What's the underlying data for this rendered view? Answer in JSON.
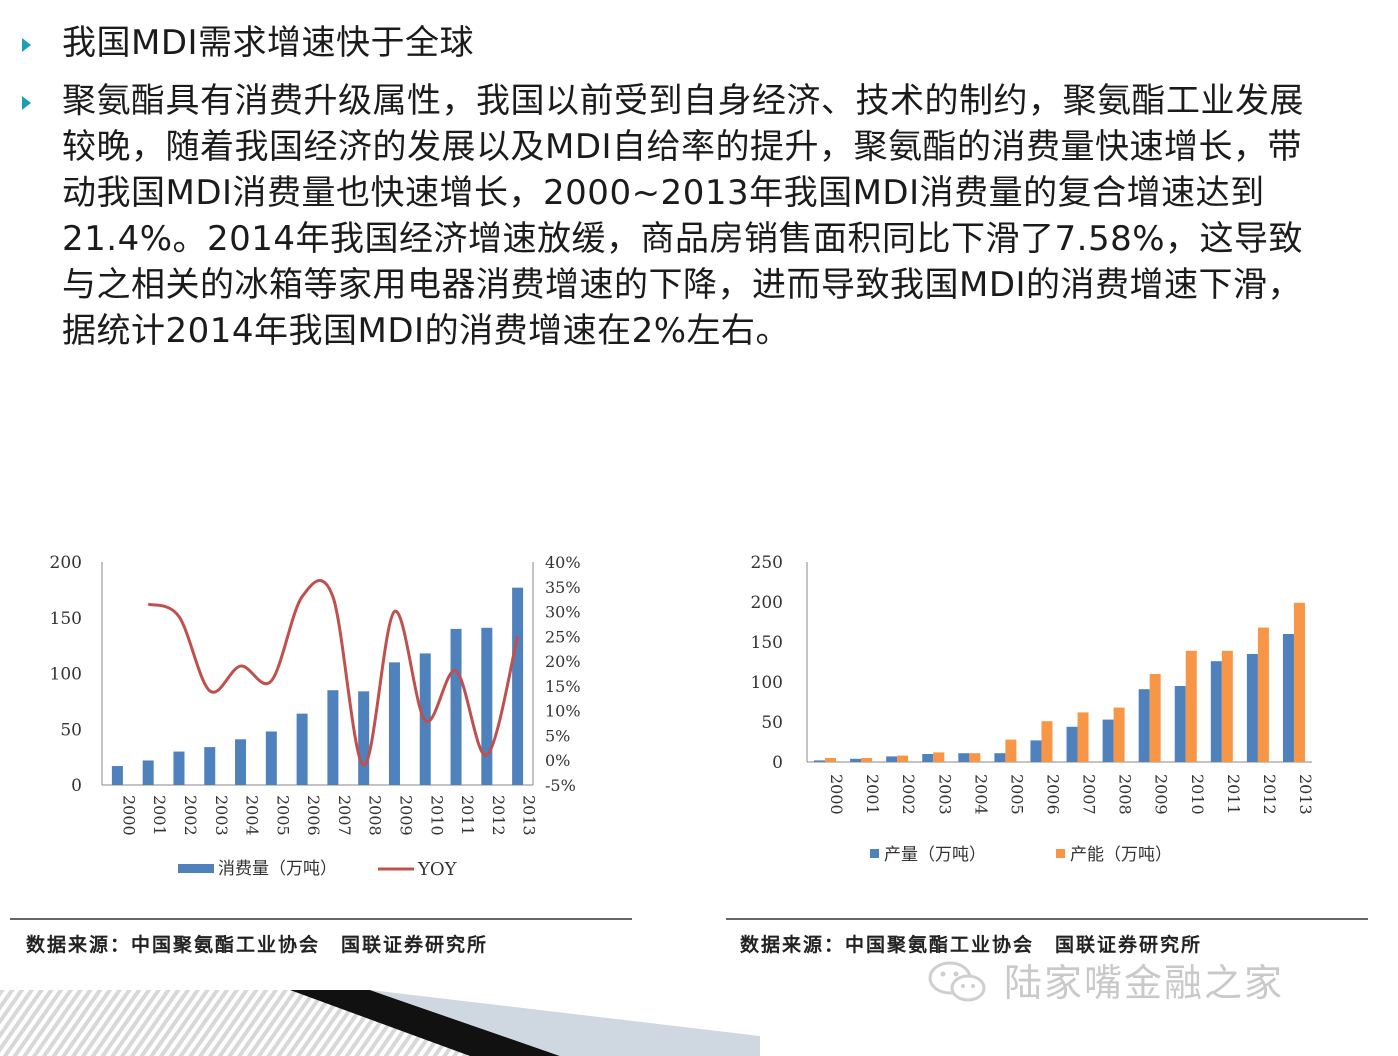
{
  "bullets": [
    {
      "text": "我国MDI需求增速快于全球"
    },
    {
      "text": "聚氨酯具有消费升级属性，我国以前受到自身经济、技术的制约，聚氨酯工业发展较晚，随着我国经济的发展以及MDI自给率的提升，聚氨酯的消费量快速增长，带动我国MDI消费量也快速增长，2000~2013年我国MDI消费量的复合增速达到21.4%。2014年我国经济增速放缓，商品房销售面积同比下滑了7.58%，这导致与之相关的冰箱等家用电器消费增速的下降，进而导致我国MDI的消费增速下滑，据统计2014年我国MDI的消费增速在2%左右。"
    }
  ],
  "sources": {
    "left": "数据来源：中国聚氨酯工业协会　国联证券研究所",
    "right": "数据来源：中国聚氨酯工业协会　国联证券研究所"
  },
  "watermark": "陆家嘴金融之家",
  "colors": {
    "blue": "#4f81bd",
    "red": "#c0504d",
    "orange": "#f79646",
    "bullet": "#1aa0b4"
  },
  "chart_data": [
    {
      "type": "bar",
      "categories": [
        "2000",
        "2001",
        "2002",
        "2003",
        "2004",
        "2005",
        "2006",
        "2007",
        "2008",
        "2009",
        "2010",
        "2011",
        "2012",
        "2013"
      ],
      "series": [
        {
          "name": "消费量（万吨）",
          "type": "bar",
          "axis": "left",
          "color": "#4f81bd",
          "values": [
            17,
            22,
            30,
            34,
            41,
            48,
            64,
            85,
            84,
            110,
            118,
            140,
            141,
            177
          ]
        },
        {
          "name": "YOY",
          "type": "line",
          "axis": "right",
          "color": "#c0504d",
          "values": [
            null,
            31.5,
            29,
            14,
            19,
            16,
            33,
            33,
            -1,
            30,
            8,
            18,
            1,
            25
          ]
        }
      ],
      "ylim": [
        0,
        200
      ],
      "yticks": [
        "0",
        "50",
        "100",
        "150",
        "200"
      ],
      "y2lim": [
        -5,
        40
      ],
      "y2ticks": [
        "-5%",
        "0%",
        "5%",
        "10%",
        "15%",
        "20%",
        "25%",
        "30%",
        "35%",
        "40%"
      ],
      "legend_position": "bottom"
    },
    {
      "type": "bar",
      "categories": [
        "2000",
        "2001",
        "2002",
        "2003",
        "2004",
        "2005",
        "2006",
        "2007",
        "2008",
        "2009",
        "2010",
        "2011",
        "2012",
        "2013"
      ],
      "series": [
        {
          "name": "产量（万吨）",
          "color": "#4f81bd",
          "values": [
            2,
            4,
            7,
            10,
            11,
            11,
            27,
            44,
            53,
            91,
            95,
            126,
            135,
            160
          ]
        },
        {
          "name": "产能（万吨）",
          "color": "#f79646",
          "values": [
            5,
            5,
            8,
            12,
            11,
            28,
            51,
            62,
            68,
            110,
            139,
            139,
            168,
            199
          ]
        }
      ],
      "ylim": [
        0,
        250
      ],
      "yticks": [
        "0",
        "50",
        "100",
        "150",
        "200",
        "250"
      ],
      "legend_position": "bottom"
    }
  ]
}
